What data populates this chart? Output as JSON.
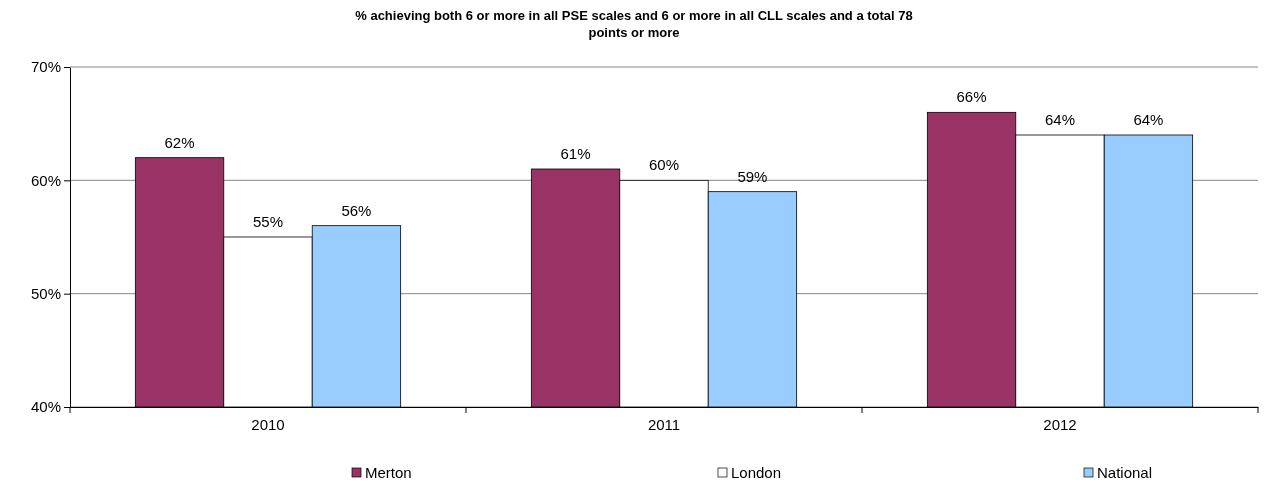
{
  "chart_data": {
    "type": "bar",
    "title": "% achieving both 6 or more in all PSE scales and 6 or more in all CLL scales and a total 78 points or more",
    "categories": [
      "2010",
      "2011",
      "2012"
    ],
    "series": [
      {
        "name": "Merton",
        "color": "#993366",
        "values": [
          62,
          61,
          66
        ],
        "value_labels": [
          "62%",
          "61%",
          "66%"
        ]
      },
      {
        "name": "London",
        "color": "#ffffff",
        "values": [
          55,
          60,
          64
        ],
        "value_labels": [
          "55%",
          "60%",
          "64%"
        ]
      },
      {
        "name": "National",
        "color": "#99ccff",
        "values": [
          56,
          59,
          64
        ],
        "value_labels": [
          "56%",
          "59%",
          "64%"
        ]
      }
    ],
    "ylim": [
      40,
      70
    ],
    "yticks": [
      {
        "value": 40,
        "label": "40%"
      },
      {
        "value": 50,
        "label": "50%"
      },
      {
        "value": 60,
        "label": "60%"
      },
      {
        "value": 70,
        "label": "70%"
      }
    ],
    "grid": "y",
    "legend": "bottom"
  }
}
